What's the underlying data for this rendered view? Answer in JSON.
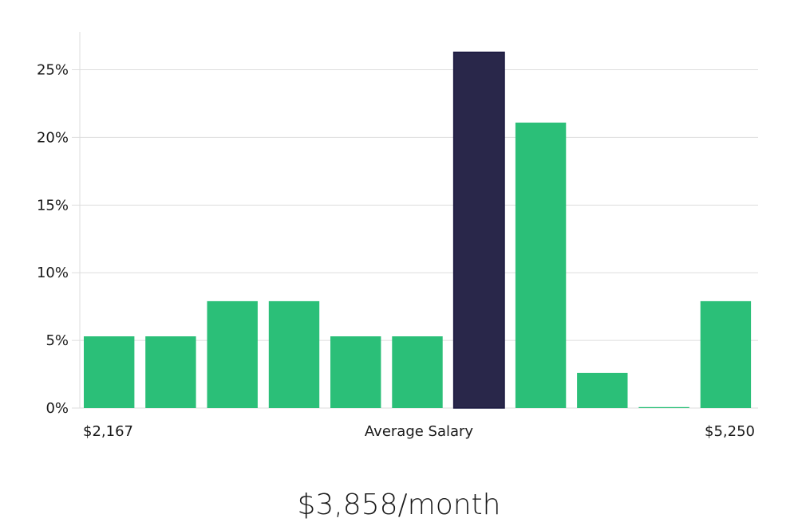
{
  "chart_data": {
    "type": "bar",
    "values": [
      5.3,
      5.3,
      7.9,
      7.9,
      5.3,
      5.3,
      26.3,
      21.1,
      2.6,
      0,
      7.9
    ],
    "highlight_index": 6,
    "ylim": [
      0,
      27.8
    ],
    "y_ticks": [
      0,
      5,
      10,
      15,
      20,
      25
    ],
    "y_tick_labels": [
      "0%",
      "5%",
      "10%",
      "15%",
      "20%",
      "25%"
    ],
    "x_min_label": "$2,167",
    "x_center_label": "Average Salary",
    "x_max_label": "$5,250",
    "grid": true,
    "colors": {
      "bar": "#2bbf78",
      "highlight": "#29274a"
    }
  },
  "summary": "$3,858/month"
}
